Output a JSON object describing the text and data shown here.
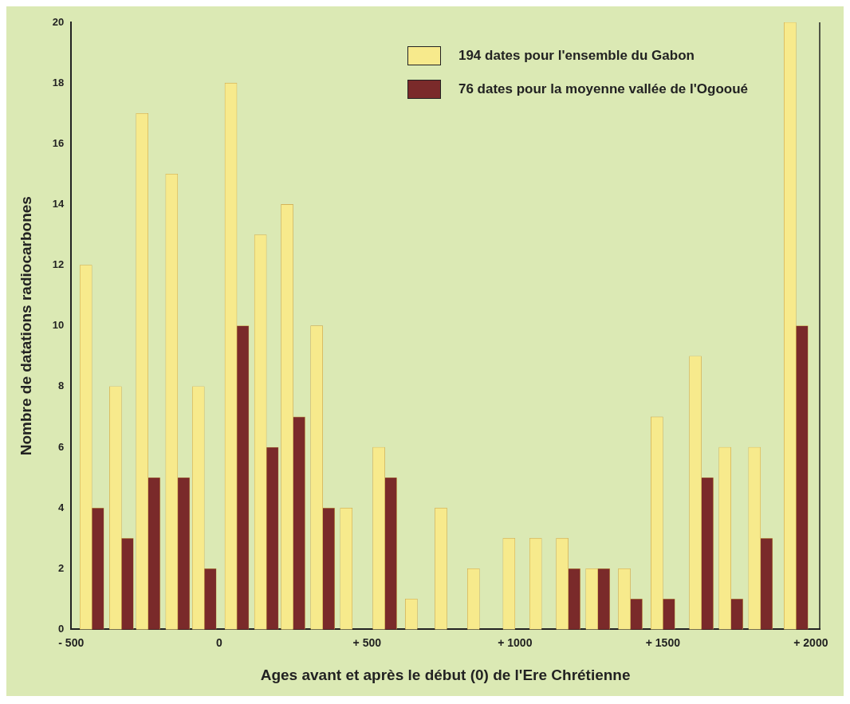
{
  "chart_data": {
    "type": "bar",
    "xlabel": "Ages avant et après le début (0) de l'Ere Chrétienne",
    "ylabel": "Nombre de datations radiocarbones",
    "x": [
      -430,
      -330,
      -240,
      -140,
      -50,
      60,
      160,
      250,
      350,
      450,
      560,
      670,
      770,
      880,
      1000,
      1090,
      1180,
      1280,
      1390,
      1500,
      1630,
      1730,
      1830,
      1950
    ],
    "series": [
      {
        "name": "194 dates pour l'ensemble du Gabon",
        "color": "#f7ea8c",
        "values": [
          12,
          8,
          17,
          15,
          8,
          18,
          13,
          14,
          10,
          4,
          6,
          1,
          4,
          2,
          3,
          3,
          3,
          2,
          2,
          7,
          9,
          6,
          6,
          20
        ]
      },
      {
        "name": "76 dates pour la moyenne vallée de l'Ogooué",
        "color": "#7a2a2a",
        "values": [
          4,
          3,
          5,
          5,
          2,
          10,
          6,
          7,
          4,
          0,
          5,
          0,
          0,
          0,
          0,
          0,
          2,
          2,
          1,
          1,
          5,
          1,
          3,
          10
        ]
      }
    ],
    "xlim": [
      -500,
      2030
    ],
    "xticks": [
      {
        "value": -500,
        "label": "- 500"
      },
      0,
      {
        "value": 500,
        "label": "+ 500"
      },
      {
        "value": 1000,
        "label": "+ 1000"
      },
      {
        "value": 1500,
        "label": "+ 1500"
      },
      {
        "value": 2000,
        "label": "+ 2000"
      }
    ],
    "ylim": [
      0,
      20
    ],
    "yticks": [
      0,
      2,
      4,
      6,
      8,
      10,
      12,
      14,
      16,
      18,
      20
    ],
    "grid": false,
    "legend": "top right"
  }
}
